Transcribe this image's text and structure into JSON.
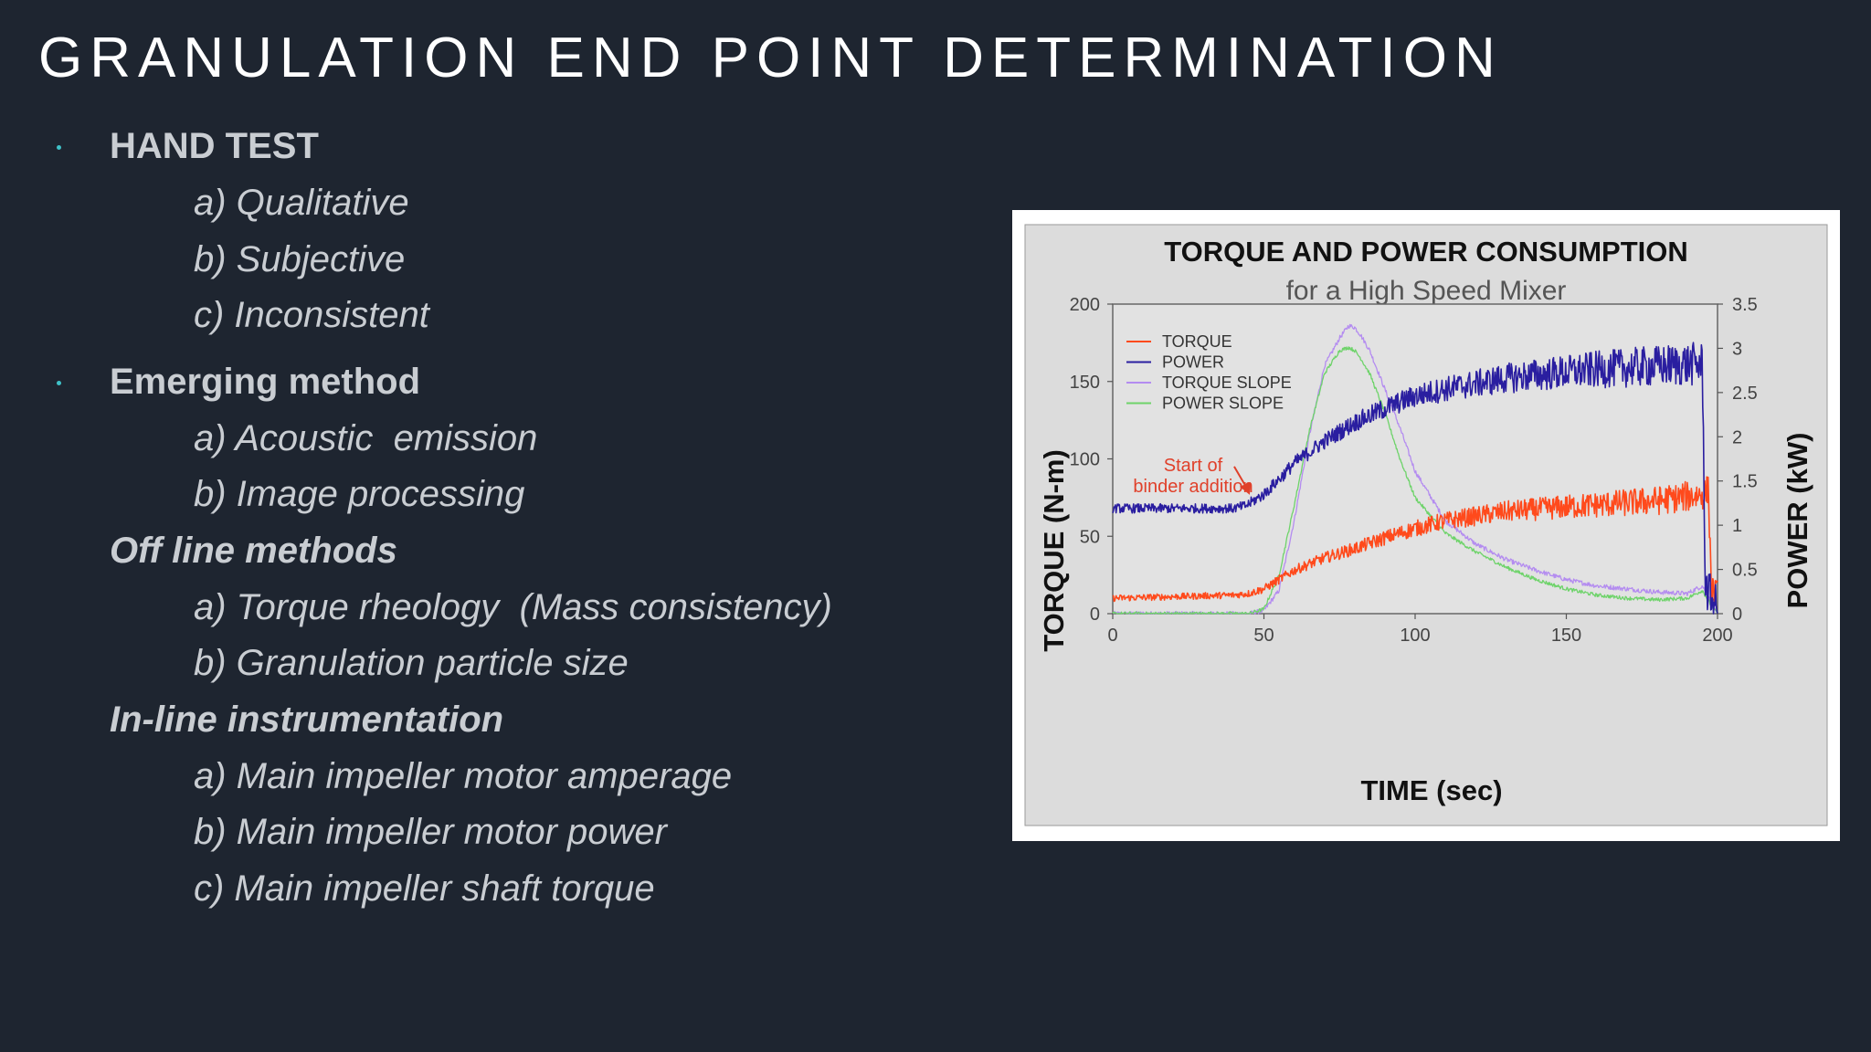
{
  "slide": {
    "title": "GRANULATION END POINT DETERMINATION",
    "sections": [
      {
        "heading": "HAND TEST",
        "items": [
          "a) Qualitative",
          "b) Subjective",
          "c) Inconsistent"
        ]
      },
      {
        "heading": "Emerging method",
        "items": [
          "a) Acoustic  emission",
          "b) Image processing"
        ]
      },
      {
        "heading": "Off line methods",
        "items": [
          "a) Torque rheology  (Mass consistency)",
          "b) Granulation particle size"
        ]
      },
      {
        "heading": "In-line instrumentation",
        "items": [
          "a) Main impeller motor amperage",
          "b) Main impeller motor power",
          "c) Main impeller shaft torque"
        ]
      }
    ]
  },
  "chart_data": {
    "type": "line",
    "title": "TORQUE AND POWER CONSUMPTION",
    "subtitle": "for a High Speed Mixer",
    "xlabel": "TIME (sec)",
    "ylabel_left": "TORQUE (N-m)",
    "ylabel_right": "POWER (kW)",
    "xlim": [
      0,
      200
    ],
    "ylim_left": [
      0,
      200
    ],
    "ylim_right": [
      0,
      3.5
    ],
    "x_ticks": [
      "0",
      "50",
      "100",
      "150",
      "200"
    ],
    "y_left_ticks": [
      "0",
      "50",
      "100",
      "150",
      "200"
    ],
    "y_right_ticks": [
      "0",
      "0.5",
      "1",
      "1.5",
      "2",
      "2.5",
      "3",
      "3.5"
    ],
    "legend_position": "top-left",
    "annotation": {
      "text_lines": [
        "Start of",
        "binder addition"
      ],
      "x": 45,
      "y_left": 75
    },
    "series": [
      {
        "name": "TORQUE",
        "axis": "left",
        "color": "#ff4a1c",
        "noise": 6,
        "x": [
          0,
          20,
          40,
          45,
          50,
          55,
          60,
          70,
          80,
          90,
          100,
          110,
          120,
          130,
          150,
          180,
          195,
          197,
          198,
          200
        ],
        "y": [
          10,
          11,
          12,
          13,
          16,
          22,
          28,
          36,
          42,
          49,
          55,
          60,
          63,
          66,
          69,
          73,
          77,
          80,
          15,
          12
        ]
      },
      {
        "name": "POWER",
        "axis": "right",
        "color": "#2a1ea0",
        "noise": 0.15,
        "x": [
          0,
          20,
          40,
          44,
          50,
          55,
          60,
          70,
          80,
          90,
          100,
          110,
          120,
          130,
          140,
          150,
          160,
          170,
          180,
          190,
          195,
          196,
          200
        ],
        "y": [
          1.19,
          1.19,
          1.19,
          1.22,
          1.35,
          1.52,
          1.7,
          1.95,
          2.16,
          2.32,
          2.46,
          2.54,
          2.6,
          2.66,
          2.7,
          2.73,
          2.76,
          2.78,
          2.8,
          2.82,
          2.82,
          0.3,
          0.05
        ]
      },
      {
        "name": "TORQUE SLOPE",
        "axis": "left",
        "color": "#b48cf0",
        "noise": 1.5,
        "x": [
          0,
          45,
          50,
          55,
          60,
          65,
          70,
          75,
          78,
          80,
          82,
          85,
          90,
          95,
          100,
          110,
          120,
          130,
          140,
          150,
          160,
          170,
          180,
          190,
          195,
          198,
          200
        ],
        "y": [
          0,
          0,
          2,
          15,
          60,
          115,
          160,
          178,
          186,
          185,
          180,
          170,
          145,
          120,
          92,
          60,
          45,
          35,
          28,
          22,
          18,
          16,
          14,
          13,
          18,
          8,
          0
        ]
      },
      {
        "name": "POWER SLOPE",
        "axis": "left",
        "color": "#6ed36a",
        "noise": 1.2,
        "x": [
          0,
          45,
          50,
          55,
          60,
          65,
          70,
          75,
          78,
          80,
          82,
          85,
          90,
          95,
          100,
          110,
          120,
          130,
          140,
          150,
          160,
          170,
          180,
          190,
          195,
          198,
          200
        ],
        "y": [
          0,
          0,
          3,
          25,
          70,
          118,
          155,
          170,
          172,
          170,
          165,
          155,
          130,
          100,
          75,
          52,
          40,
          30,
          22,
          16,
          12,
          10,
          9,
          10,
          15,
          5,
          0
        ]
      }
    ]
  }
}
